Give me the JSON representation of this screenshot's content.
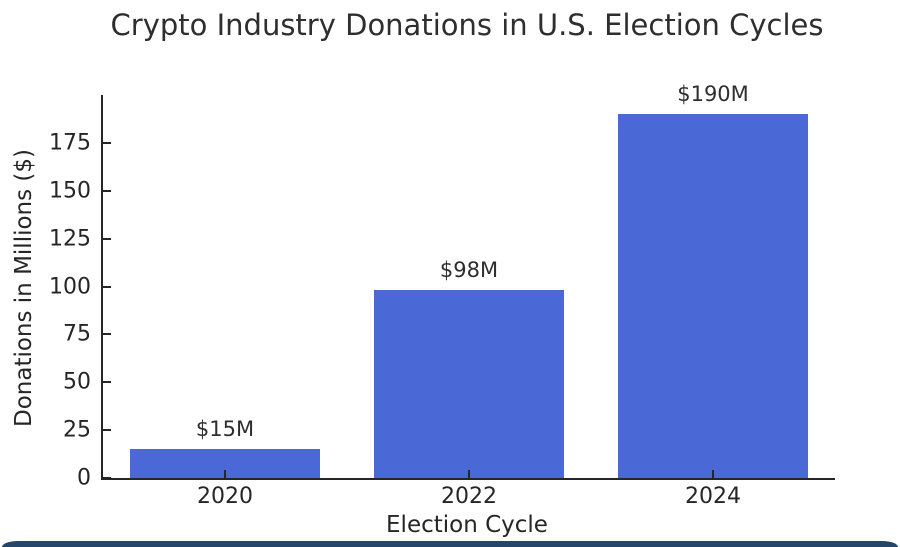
{
  "chart_data": {
    "type": "bar",
    "title": "Crypto Industry Donations in U.S. Election Cycles",
    "xlabel": "Election Cycle",
    "ylabel": "Donations in Millions ($)",
    "categories": [
      "2020",
      "2022",
      "2024"
    ],
    "values": [
      15,
      98,
      190
    ],
    "bar_labels": [
      "$15M",
      "$98M",
      "$190M"
    ],
    "ylim": [
      0,
      200
    ],
    "yticks": [
      0,
      25,
      50,
      75,
      100,
      125,
      150,
      175
    ],
    "grid": false,
    "legend": "none",
    "bar_color": "#4a68d6",
    "axis_color": "#262626",
    "text_color": "#2e2e2e"
  },
  "footer": {
    "accent_color": "#24466b"
  }
}
